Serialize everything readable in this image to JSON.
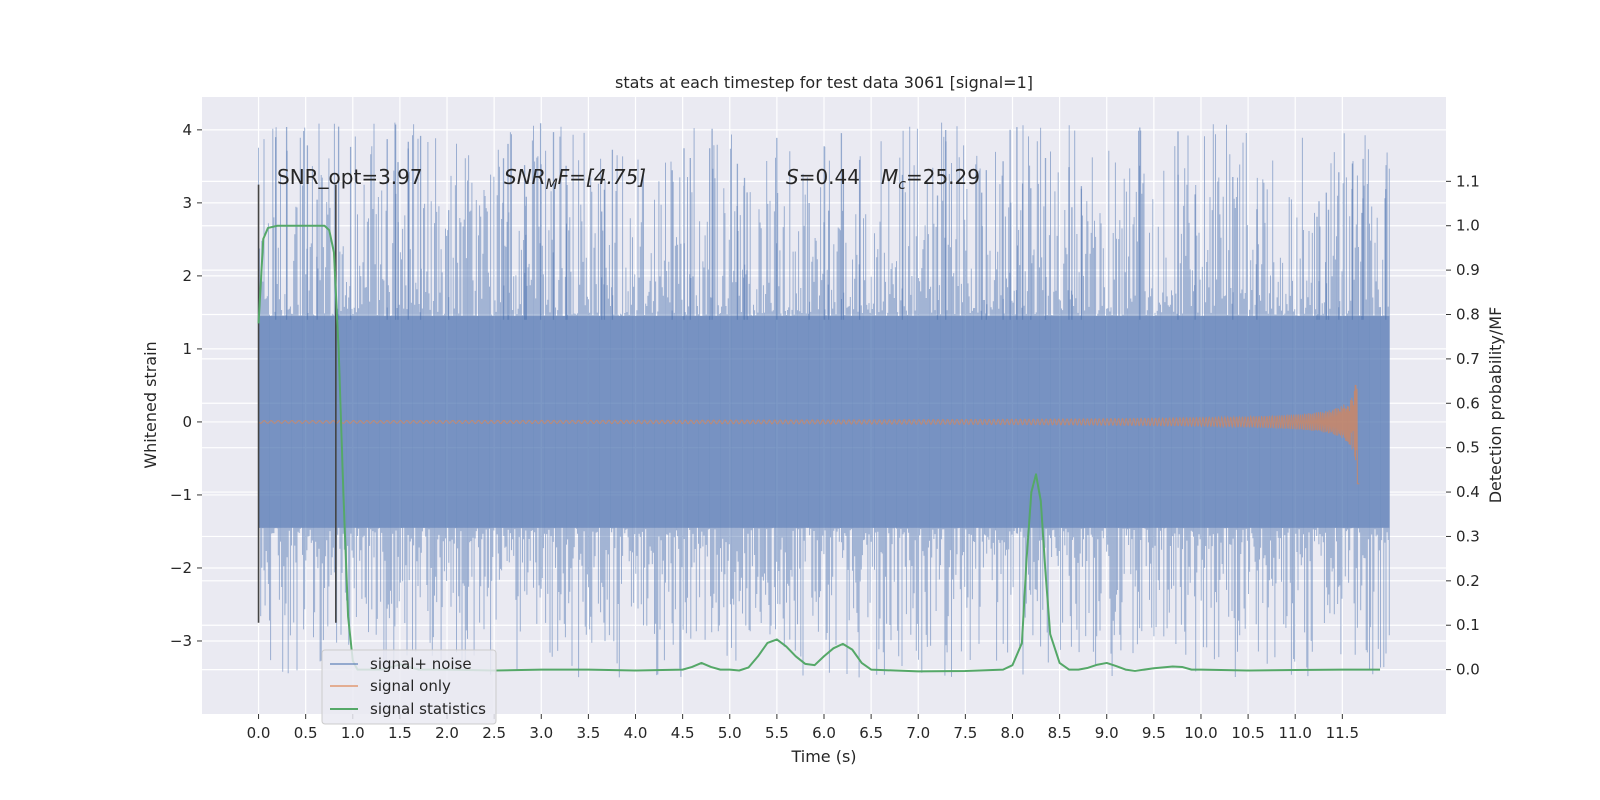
{
  "chart_data": {
    "type": "line",
    "title": "stats at each timestep for test data 3061 [signal=1]",
    "xlabel": "Time (s)",
    "ylabel_left": "Whitened strain",
    "ylabel_right": "Detection probability/MF",
    "xlim": [
      -0.6,
      12.6
    ],
    "ylim_left": [
      -4.0,
      4.45
    ],
    "ylim_right": [
      -0.1,
      1.29
    ],
    "x_ticks": [
      "0.0",
      "0.5",
      "1.0",
      "1.5",
      "2.0",
      "2.5",
      "3.0",
      "3.5",
      "4.0",
      "4.5",
      "5.0",
      "5.5",
      "6.0",
      "6.5",
      "7.0",
      "7.5",
      "8.0",
      "8.5",
      "9.0",
      "9.5",
      "10.0",
      "10.5",
      "11.0",
      "11.5"
    ],
    "y_left_ticks": [
      "4",
      "3",
      "2",
      "1",
      "0",
      "−1",
      "−2",
      "−3"
    ],
    "y_right_ticks": [
      "1.1",
      "1.0",
      "0.9",
      "0.8",
      "0.7",
      "0.6",
      "0.5",
      "0.4",
      "0.3",
      "0.2",
      "0.1",
      "0.0"
    ],
    "grid": true,
    "legend_position": "lower-left",
    "annotations": {
      "snr_opt": "SNR_opt=3.97",
      "snr_mf_main": "SNR",
      "snr_mf_sub": "M",
      "snr_mf_rest": "F=[4.75]",
      "s_main": "S",
      "s_rest": "=0.44",
      "mc_main": "M",
      "mc_sub": "c",
      "mc_rest": "=25.29"
    },
    "vertical_markers_x": [
      0.0,
      0.82
    ],
    "series": [
      {
        "name": "signal+ noise",
        "color": "#4c72b0",
        "axis": "left",
        "x_range": [
          0.0,
          12.0
        ],
        "band_abs": 1.45,
        "spike_max": 4.1,
        "spike_min": -3.5
      },
      {
        "name": "signal only",
        "color": "#dd8452",
        "axis": "left",
        "x_range": [
          0.0,
          11.68
        ],
        "peak_amplitude": 0.85,
        "peak_time": 11.68
      },
      {
        "name": "signal statistics",
        "color": "#55a868",
        "axis": "right",
        "x": [
          0.0,
          0.05,
          0.1,
          0.2,
          0.3,
          0.4,
          0.5,
          0.6,
          0.7,
          0.75,
          0.8,
          0.85,
          0.9,
          0.95,
          1.0,
          1.05,
          1.1,
          1.2,
          1.3,
          1.4,
          1.5,
          1.6,
          1.7,
          2.0,
          2.5,
          3.0,
          3.5,
          4.0,
          4.5,
          4.6,
          4.7,
          4.8,
          4.9,
          5.0,
          5.1,
          5.2,
          5.3,
          5.4,
          5.5,
          5.6,
          5.7,
          5.8,
          5.9,
          6.0,
          6.1,
          6.2,
          6.3,
          6.4,
          6.5,
          7.0,
          7.5,
          7.9,
          8.0,
          8.1,
          8.15,
          8.2,
          8.25,
          8.3,
          8.35,
          8.4,
          8.5,
          8.6,
          8.7,
          8.8,
          8.9,
          9.0,
          9.1,
          9.2,
          9.3,
          9.5,
          9.7,
          9.8,
          9.9,
          10.0,
          10.5,
          11.0,
          11.5,
          11.9
        ],
        "values": [
          0.78,
          0.97,
          0.995,
          1.0,
          1.0,
          1.0,
          1.0,
          1.0,
          1.0,
          0.99,
          0.94,
          0.72,
          0.4,
          0.12,
          0.02,
          0.0,
          0.0,
          0.0,
          0.0,
          0.005,
          0.012,
          0.006,
          0.0,
          0.0,
          -0.002,
          0.0,
          0.0,
          -0.002,
          0.0,
          0.006,
          0.015,
          0.006,
          0.0,
          0.0,
          -0.002,
          0.005,
          0.03,
          0.06,
          0.068,
          0.052,
          0.03,
          0.013,
          0.01,
          0.03,
          0.048,
          0.058,
          0.045,
          0.015,
          0.0,
          -0.004,
          -0.003,
          0.0,
          0.01,
          0.06,
          0.25,
          0.4,
          0.44,
          0.38,
          0.22,
          0.08,
          0.015,
          0.0,
          0.0,
          0.004,
          0.011,
          0.015,
          0.008,
          0.0,
          -0.003,
          0.003,
          0.007,
          0.006,
          0.0,
          0.0,
          -0.002,
          -0.001,
          0.0,
          0.0
        ]
      }
    ]
  }
}
